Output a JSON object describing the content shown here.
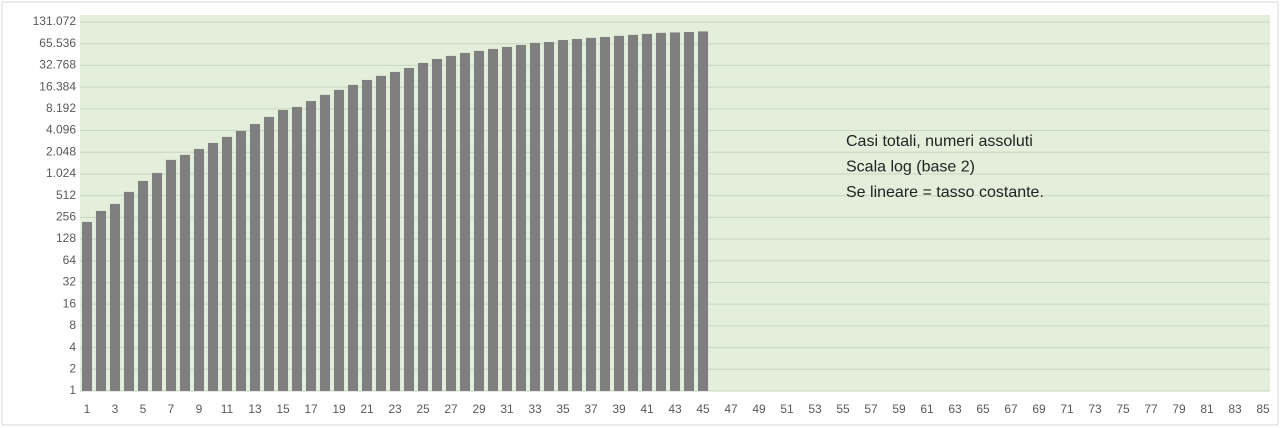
{
  "chart_data": {
    "type": "bar",
    "categories": [
      1,
      null,
      3,
      null,
      5,
      null,
      7,
      null,
      9,
      null,
      11,
      null,
      13,
      null,
      15,
      null,
      17,
      null,
      19,
      null,
      21,
      null,
      23,
      null,
      25,
      null,
      27,
      null,
      29,
      null,
      31,
      null,
      33,
      null,
      35,
      null,
      37,
      null,
      39,
      null,
      41,
      null,
      43,
      null,
      45,
      null,
      47,
      null,
      49,
      null,
      51,
      null,
      53,
      null,
      55,
      null,
      57,
      null,
      59,
      null,
      61,
      null,
      63,
      null,
      65,
      null,
      67,
      null,
      69,
      null,
      71,
      null,
      73,
      null,
      75,
      null,
      77,
      null,
      79,
      null,
      81,
      null,
      83,
      null,
      85
    ],
    "values": [
      221,
      314,
      393,
      577,
      819,
      1057,
      1604,
      1882,
      2276,
      2757,
      3345,
      4040,
      5050,
      6330,
      7900,
      8700,
      10500,
      12800,
      15000,
      17600,
      20600,
      23500,
      26600,
      30200,
      35500,
      40300,
      44400,
      48900,
      52100,
      55500,
      59100,
      62900,
      67300,
      69300,
      73700,
      76300,
      79000,
      81300,
      84200,
      87000,
      89600,
      92700,
      94000,
      95300,
      97000,
      null,
      null,
      null,
      null,
      null,
      null,
      null,
      null,
      null,
      null,
      null,
      null,
      null,
      null,
      null,
      null,
      null,
      null,
      null,
      null,
      null,
      null,
      null,
      null,
      null,
      null,
      null,
      null,
      null,
      null,
      null,
      null,
      null,
      null,
      null,
      null,
      null,
      null,
      null,
      null
    ],
    "color": "#7f7f7f",
    "ylim": [
      1,
      131072
    ],
    "log_scale": true,
    "log_base": 2,
    "yticks": [
      1,
      2,
      4,
      8,
      16,
      32,
      64,
      128,
      256,
      512,
      {
        "value": 1024,
        "label": "1.024"
      },
      {
        "value": 2048,
        "label": "2.048"
      },
      {
        "value": 4096,
        "label": "4.096"
      },
      {
        "value": 8192,
        "label": "8.192"
      },
      {
        "value": 16384,
        "label": "16.384"
      },
      {
        "value": 32768,
        "label": "32.768"
      },
      {
        "value": 65536,
        "label": "65.536"
      },
      {
        "value": 131072,
        "label": "131.072"
      }
    ],
    "grid": true,
    "annotations": [
      "Casi totali, numeri assoluti",
      "Scala log (base 2)",
      "Se lineare = tasso costante."
    ]
  }
}
